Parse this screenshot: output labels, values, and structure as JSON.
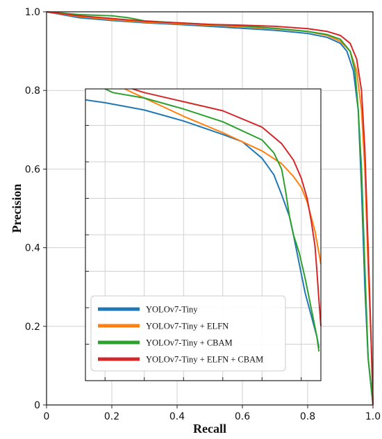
{
  "chart_data": {
    "type": "line",
    "title": "",
    "xlabel": "Recall",
    "ylabel": "Precision",
    "xlim": [
      0,
      1.0
    ],
    "ylim": [
      0,
      1.0
    ],
    "grid": true,
    "x_ticks": [
      "0",
      "0.2",
      "0.4",
      "0.6",
      "0.8",
      "1.0"
    ],
    "y_ticks": [
      "0",
      "0.2",
      "0.4",
      "0.6",
      "0.8",
      "1.0"
    ],
    "legend_placement": "inset-lower-left",
    "series": [
      {
        "name": "YOLOv7-Tiny",
        "color": "#1f77b4",
        "points": [
          [
            0,
            1.0
          ],
          [
            0.1,
            0.985
          ],
          [
            0.2,
            0.978
          ],
          [
            0.3,
            0.972
          ],
          [
            0.4,
            0.968
          ],
          [
            0.5,
            0.963
          ],
          [
            0.6,
            0.958
          ],
          [
            0.7,
            0.953
          ],
          [
            0.8,
            0.945
          ],
          [
            0.86,
            0.935
          ],
          [
            0.9,
            0.92
          ],
          [
            0.92,
            0.9
          ],
          [
            0.94,
            0.85
          ],
          [
            0.955,
            0.75
          ],
          [
            0.965,
            0.55
          ],
          [
            0.975,
            0.3
          ],
          [
            0.985,
            0.12
          ],
          [
            1.0,
            0.0
          ]
        ]
      },
      {
        "name": "YOLOv7-Tiny + ELFN",
        "color": "#ff7f0e",
        "points": [
          [
            0,
            1.0
          ],
          [
            0.1,
            0.988
          ],
          [
            0.2,
            0.98
          ],
          [
            0.3,
            0.974
          ],
          [
            0.4,
            0.97
          ],
          [
            0.5,
            0.966
          ],
          [
            0.6,
            0.962
          ],
          [
            0.7,
            0.957
          ],
          [
            0.8,
            0.95
          ],
          [
            0.86,
            0.94
          ],
          [
            0.9,
            0.925
          ],
          [
            0.93,
            0.9
          ],
          [
            0.95,
            0.85
          ],
          [
            0.965,
            0.75
          ],
          [
            0.975,
            0.6
          ],
          [
            0.985,
            0.35
          ],
          [
            0.995,
            0.15
          ],
          [
            1.0,
            0.0
          ]
        ]
      },
      {
        "name": "YOLOv7-Tiny + CBAM",
        "color": "#2ca02c",
        "points": [
          [
            0,
            1.0
          ],
          [
            0.1,
            0.993
          ],
          [
            0.2,
            0.99
          ],
          [
            0.25,
            0.985
          ],
          [
            0.3,
            0.977
          ],
          [
            0.4,
            0.972
          ],
          [
            0.5,
            0.968
          ],
          [
            0.6,
            0.964
          ],
          [
            0.7,
            0.958
          ],
          [
            0.8,
            0.95
          ],
          [
            0.86,
            0.942
          ],
          [
            0.9,
            0.93
          ],
          [
            0.93,
            0.9
          ],
          [
            0.945,
            0.85
          ],
          [
            0.955,
            0.75
          ],
          [
            0.965,
            0.6
          ],
          [
            0.975,
            0.35
          ],
          [
            0.985,
            0.12
          ],
          [
            1.0,
            0.0
          ]
        ]
      },
      {
        "name": "YOLOv7-Tiny + ELFN + CBAM",
        "color": "#d62728",
        "points": [
          [
            0,
            1.0
          ],
          [
            0.1,
            0.99
          ],
          [
            0.2,
            0.983
          ],
          [
            0.3,
            0.976
          ],
          [
            0.4,
            0.972
          ],
          [
            0.5,
            0.968
          ],
          [
            0.6,
            0.966
          ],
          [
            0.7,
            0.963
          ],
          [
            0.8,
            0.957
          ],
          [
            0.86,
            0.95
          ],
          [
            0.9,
            0.94
          ],
          [
            0.93,
            0.92
          ],
          [
            0.95,
            0.88
          ],
          [
            0.965,
            0.8
          ],
          [
            0.975,
            0.65
          ],
          [
            0.985,
            0.4
          ],
          [
            0.995,
            0.15
          ],
          [
            1.0,
            0.0
          ]
        ]
      }
    ],
    "inset": {
      "xlim": [
        0.25,
        0.85
      ],
      "ylim": [
        0.0,
        0.8
      ],
      "series": [
        {
          "name": "YOLOv7-Tiny",
          "color": "#1f77b4",
          "points": [
            [
              0.25,
              0.77
            ],
            [
              0.3,
              0.762
            ],
            [
              0.4,
              0.742
            ],
            [
              0.5,
              0.712
            ],
            [
              0.6,
              0.675
            ],
            [
              0.65,
              0.655
            ],
            [
              0.7,
              0.61
            ],
            [
              0.73,
              0.565
            ],
            [
              0.75,
              0.51
            ],
            [
              0.77,
              0.45
            ],
            [
              0.78,
              0.4
            ],
            [
              0.795,
              0.32
            ],
            [
              0.81,
              0.24
            ],
            [
              0.825,
              0.18
            ],
            [
              0.84,
              0.12
            ],
            [
              0.845,
              0.09
            ]
          ]
        },
        {
          "name": "YOLOv7-Tiny + ELFN",
          "color": "#ff7f0e",
          "points": [
            [
              0.35,
              0.8
            ],
            [
              0.4,
              0.775
            ],
            [
              0.5,
              0.725
            ],
            [
              0.6,
              0.68
            ],
            [
              0.7,
              0.63
            ],
            [
              0.75,
              0.595
            ],
            [
              0.78,
              0.56
            ],
            [
              0.8,
              0.53
            ],
            [
              0.815,
              0.49
            ],
            [
              0.825,
              0.45
            ],
            [
              0.835,
              0.41
            ],
            [
              0.845,
              0.35
            ],
            [
              0.85,
              0.32
            ]
          ]
        },
        {
          "name": "YOLOv7-Tiny + CBAM",
          "color": "#2ca02c",
          "points": [
            [
              0.3,
              0.8
            ],
            [
              0.32,
              0.79
            ],
            [
              0.4,
              0.775
            ],
            [
              0.5,
              0.745
            ],
            [
              0.6,
              0.71
            ],
            [
              0.7,
              0.66
            ],
            [
              0.73,
              0.625
            ],
            [
              0.75,
              0.58
            ],
            [
              0.76,
              0.52
            ],
            [
              0.77,
              0.45
            ],
            [
              0.78,
              0.4
            ],
            [
              0.795,
              0.35
            ],
            [
              0.81,
              0.28
            ],
            [
              0.825,
              0.2
            ],
            [
              0.84,
              0.12
            ],
            [
              0.845,
              0.08
            ]
          ]
        },
        {
          "name": "YOLOv7-Tiny + ELFN + CBAM",
          "color": "#d62728",
          "points": [
            [
              0.37,
              0.8
            ],
            [
              0.4,
              0.79
            ],
            [
              0.5,
              0.765
            ],
            [
              0.6,
              0.74
            ],
            [
              0.7,
              0.695
            ],
            [
              0.75,
              0.65
            ],
            [
              0.78,
              0.605
            ],
            [
              0.8,
              0.555
            ],
            [
              0.815,
              0.5
            ],
            [
              0.825,
              0.44
            ],
            [
              0.835,
              0.37
            ],
            [
              0.84,
              0.3
            ],
            [
              0.845,
              0.22
            ],
            [
              0.85,
              0.15
            ]
          ]
        }
      ]
    }
  }
}
